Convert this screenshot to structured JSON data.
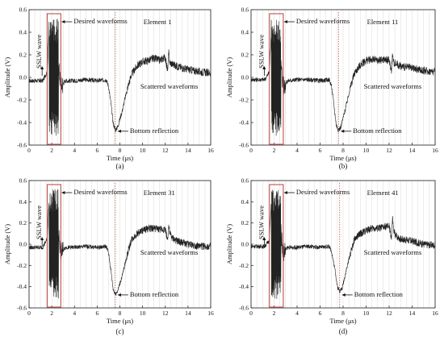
{
  "chart_data": [
    {
      "type": "line",
      "caption": "(a)",
      "element_label": "Element 1",
      "xlabel": "Time (μs)",
      "ylabel": "Amplitude (V)",
      "xlim": [
        0,
        16
      ],
      "ylim": [
        -0.6,
        0.6
      ],
      "x_ticks": [
        0,
        2,
        4,
        6,
        8,
        10,
        12,
        14,
        16
      ],
      "y_ticks": [
        -0.6,
        -0.4,
        -0.2,
        0.0,
        0.2,
        0.4,
        0.6
      ],
      "y_tick_labels": [
        "-0.6",
        "-0.4",
        "-0.2",
        "0.0",
        "0.2",
        "0.4",
        "0.6"
      ],
      "annotations": {
        "sslw": "SSLW wave",
        "desired": "Desired waveforms",
        "bottom": "Bottom reflection",
        "scattered": "Scattered waveforms"
      },
      "desired_window_us": [
        1.6,
        2.8
      ],
      "bottom_reflection_time_us": 7.6,
      "x": [
        0,
        1.2,
        1.6,
        1.8,
        1.9,
        2.0,
        2.1,
        2.2,
        2.3,
        2.5,
        2.8,
        3.2,
        4.0,
        5.0,
        6.0,
        6.8,
        7.0,
        7.2,
        7.4,
        7.6,
        7.8,
        8.2,
        8.6,
        9.0,
        9.5,
        10.0,
        10.5,
        11.0,
        11.5,
        12.0,
        12.2,
        12.3,
        12.4,
        12.6,
        13.0,
        14.0,
        15.0,
        16.0
      ],
      "y": [
        -0.03,
        -0.03,
        0.05,
        0.5,
        -0.45,
        0.52,
        -0.48,
        0.45,
        -0.3,
        0.2,
        -0.08,
        -0.03,
        -0.03,
        -0.02,
        -0.03,
        -0.02,
        -0.08,
        -0.22,
        -0.4,
        -0.47,
        -0.44,
        -0.3,
        -0.12,
        0.02,
        0.1,
        0.14,
        0.15,
        0.17,
        0.15,
        0.18,
        0.05,
        0.22,
        0.13,
        0.12,
        0.1,
        0.07,
        0.05,
        0.04
      ]
    },
    {
      "type": "line",
      "caption": "(b)",
      "element_label": "Element 11",
      "xlabel": "Time (μs)",
      "ylabel": "Amplitude (V)",
      "xlim": [
        0,
        16
      ],
      "ylim": [
        -0.6,
        0.6
      ],
      "x_ticks": [
        0,
        2,
        4,
        6,
        8,
        10,
        12,
        14,
        16
      ],
      "y_ticks": [
        -0.6,
        -0.4,
        -0.2,
        0.0,
        0.2,
        0.4,
        0.6
      ],
      "y_tick_labels": [
        "-0.6",
        "-0.4",
        "-0.2",
        "0.0",
        "0.2",
        "0.4",
        "0.6"
      ],
      "annotations": {
        "sslw": "SSLW wave",
        "desired": "Desired waveforms",
        "bottom": "Bottom reflection",
        "scattered": "Scattered waveforms"
      },
      "desired_window_us": [
        1.6,
        2.8
      ],
      "bottom_reflection_time_us": 7.6,
      "x": [
        0,
        1.2,
        1.6,
        1.8,
        1.9,
        2.0,
        2.1,
        2.2,
        2.3,
        2.5,
        2.8,
        3.2,
        4.0,
        5.0,
        6.0,
        6.8,
        7.0,
        7.2,
        7.4,
        7.6,
        7.8,
        8.2,
        8.6,
        9.0,
        9.5,
        10.0,
        10.5,
        11.0,
        11.5,
        12.0,
        12.2,
        12.3,
        12.4,
        12.6,
        13.0,
        14.0,
        15.0,
        16.0
      ],
      "y": [
        -0.02,
        -0.02,
        0.05,
        0.5,
        -0.45,
        0.52,
        -0.48,
        0.46,
        -0.3,
        0.2,
        -0.08,
        -0.03,
        -0.02,
        -0.02,
        -0.03,
        -0.02,
        -0.08,
        -0.24,
        -0.42,
        -0.47,
        -0.44,
        -0.28,
        -0.1,
        0.04,
        0.11,
        0.15,
        0.16,
        0.15,
        0.16,
        0.15,
        0.06,
        0.2,
        0.13,
        0.12,
        0.1,
        0.08,
        0.06,
        0.05
      ]
    },
    {
      "type": "line",
      "caption": "(c)",
      "element_label": "Element 31",
      "xlabel": "Time (μs)",
      "ylabel": "Amplitude (V)",
      "xlim": [
        0,
        16
      ],
      "ylim": [
        -0.6,
        0.6
      ],
      "x_ticks": [
        0,
        2,
        4,
        6,
        8,
        10,
        12,
        14,
        16
      ],
      "y_ticks": [
        -0.6,
        -0.4,
        -0.2,
        0.0,
        0.2,
        0.4,
        0.6
      ],
      "y_tick_labels": [
        "-0.6",
        "-0.4",
        "-0.2",
        "0.0",
        "0.2",
        "0.4",
        "0.6"
      ],
      "annotations": {
        "sslw": "SSLW wave",
        "desired": "Desired waveforms",
        "bottom": "Bottom reflection",
        "scattered": "Scattered waveforms"
      },
      "desired_window_us": [
        1.6,
        2.8
      ],
      "bottom_reflection_time_us": 7.6,
      "x": [
        0,
        1.2,
        1.6,
        1.8,
        1.9,
        2.0,
        2.1,
        2.2,
        2.3,
        2.5,
        2.8,
        3.2,
        4.0,
        5.0,
        6.0,
        6.8,
        7.0,
        7.2,
        7.4,
        7.6,
        7.8,
        8.2,
        8.6,
        9.0,
        9.5,
        10.0,
        10.5,
        11.0,
        11.5,
        12.0,
        12.2,
        12.3,
        12.4,
        12.6,
        13.0,
        14.0,
        15.0,
        16.0
      ],
      "y": [
        -0.03,
        -0.03,
        0.05,
        0.5,
        -0.46,
        0.52,
        -0.48,
        0.45,
        -0.3,
        0.2,
        -0.08,
        -0.03,
        -0.03,
        -0.02,
        -0.03,
        -0.02,
        -0.08,
        -0.24,
        -0.42,
        -0.47,
        -0.44,
        -0.3,
        -0.12,
        0.04,
        0.1,
        0.13,
        0.15,
        0.15,
        0.14,
        0.14,
        0.04,
        0.18,
        0.1,
        0.06,
        0.03,
        0.0,
        -0.02,
        -0.02
      ]
    },
    {
      "type": "line",
      "caption": "(d)",
      "element_label": "Element 41",
      "xlabel": "Time (μs)",
      "ylabel": "Amplitude (V)",
      "xlim": [
        0,
        16
      ],
      "ylim": [
        -0.6,
        0.6
      ],
      "x_ticks": [
        0,
        2,
        4,
        6,
        8,
        10,
        12,
        14,
        16
      ],
      "y_ticks": [
        -0.6,
        -0.4,
        -0.2,
        0.0,
        0.2,
        0.4,
        0.6
      ],
      "y_tick_labels": [
        "-0.6",
        "-0.4",
        "-0.2",
        "0.0",
        "0.2",
        "0.4",
        "0.6"
      ],
      "annotations": {
        "sslw": "SSLW wave",
        "desired": "Desired waveforms",
        "bottom": "Bottom reflection",
        "scattered": "Scattered waveforms"
      },
      "desired_window_us": [
        1.6,
        2.8
      ],
      "bottom_reflection_time_us": 7.7,
      "x": [
        0,
        1.2,
        1.6,
        1.8,
        1.9,
        2.0,
        2.1,
        2.2,
        2.3,
        2.5,
        2.8,
        3.2,
        4.0,
        5.0,
        6.0,
        6.8,
        7.0,
        7.3,
        7.5,
        7.7,
        7.9,
        8.2,
        8.6,
        9.0,
        9.5,
        10.0,
        10.5,
        11.0,
        11.5,
        12.0,
        12.2,
        12.3,
        12.4,
        12.6,
        13.0,
        14.0,
        15.0,
        16.0
      ],
      "y": [
        -0.02,
        -0.02,
        0.04,
        0.5,
        -0.45,
        0.52,
        -0.48,
        0.44,
        -0.3,
        0.2,
        -0.08,
        -0.03,
        -0.03,
        -0.02,
        -0.03,
        -0.02,
        -0.07,
        -0.24,
        -0.4,
        -0.44,
        -0.42,
        -0.28,
        -0.1,
        0.05,
        0.1,
        0.13,
        0.15,
        0.15,
        0.16,
        0.17,
        0.06,
        0.24,
        0.12,
        0.08,
        0.05,
        0.03,
        0.0,
        -0.01
      ]
    }
  ],
  "colors": {
    "trace": "#222222",
    "box": "#c0504d",
    "marker_line": "#c0504d",
    "grid": "#d9d9d9"
  }
}
